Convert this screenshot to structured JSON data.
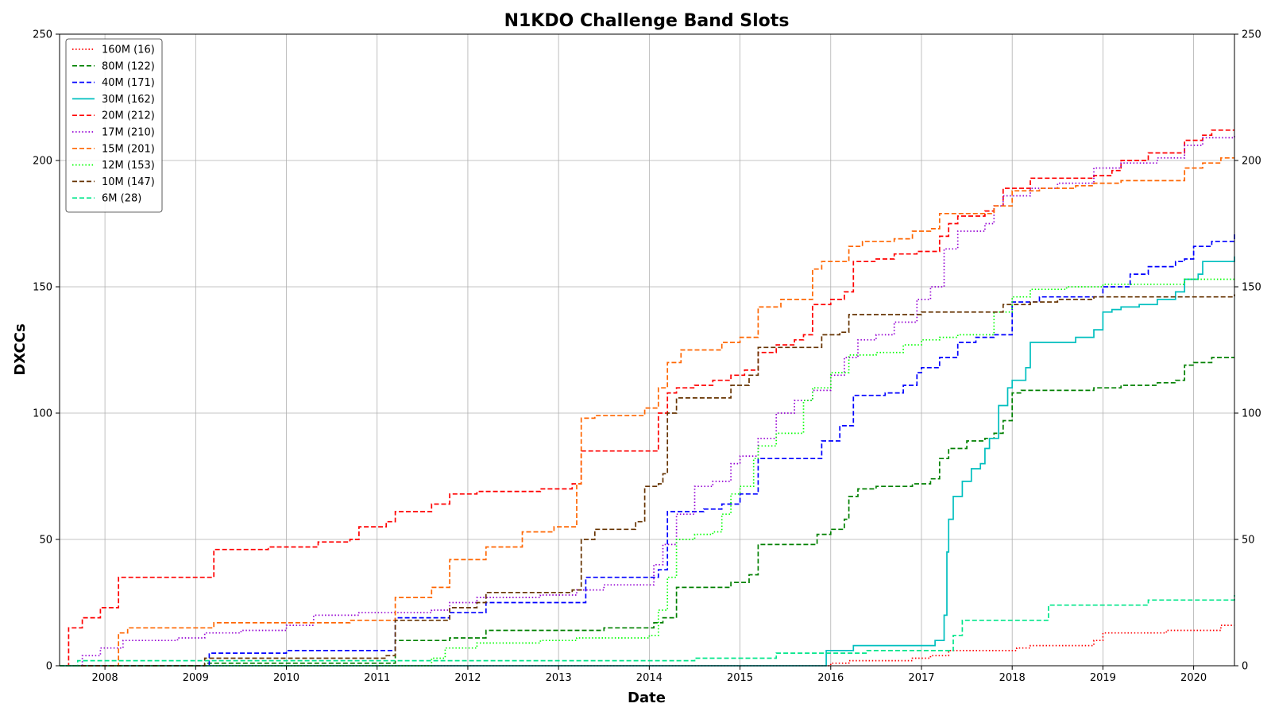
{
  "chart_data": {
    "type": "line",
    "title": "N1KDO Challenge Band Slots",
    "xlabel": "Date",
    "ylabel": "DXCCs",
    "xlim": [
      2007.5,
      2020.45
    ],
    "ylim": [
      0,
      250
    ],
    "x_ticks": [
      "2008",
      "2009",
      "2010",
      "2011",
      "2012",
      "2013",
      "2014",
      "2015",
      "2016",
      "2017",
      "2018",
      "2019",
      "2020"
    ],
    "y_ticks": [
      "0",
      "50",
      "100",
      "150",
      "200",
      "250"
    ],
    "grid": true,
    "legend_position": "top-left",
    "series": [
      {
        "name": "160M (16)",
        "color": "#ff0000",
        "style": "dotted",
        "x": [
          2007.5,
          2015.9,
          2016.0,
          2016.2,
          2016.5,
          2016.9,
          2017.1,
          2017.3,
          2017.8,
          2018.05,
          2018.2,
          2018.5,
          2018.8,
          2018.9,
          2019.0,
          2019.5,
          2019.7,
          2020.0,
          2020.3,
          2020.45
        ],
        "y": [
          0,
          0,
          1,
          2,
          2,
          3,
          4,
          6,
          6,
          7,
          8,
          8,
          8,
          10,
          13,
          13,
          14,
          14,
          16,
          16
        ]
      },
      {
        "name": "80M (122)",
        "color": "#008000",
        "style": "dashed",
        "x": [
          2007.5,
          2009.1,
          2011.2,
          2011.8,
          2012.2,
          2012.5,
          2013.1,
          2013.5,
          2013.9,
          2014.05,
          2014.15,
          2014.3,
          2014.7,
          2014.9,
          2015.1,
          2015.2,
          2015.6,
          2015.85,
          2016.0,
          2016.15,
          2016.2,
          2016.3,
          2016.5,
          2016.9,
          2017.1,
          2017.2,
          2017.3,
          2017.5,
          2017.7,
          2017.8,
          2017.9,
          2018.0,
          2018.1,
          2018.5,
          2018.9,
          2019.2,
          2019.6,
          2019.8,
          2019.9,
          2020.0,
          2020.2,
          2020.45
        ],
        "y": [
          0,
          1,
          10,
          11,
          14,
          14,
          14,
          15,
          15,
          17,
          19,
          31,
          31,
          33,
          36,
          48,
          48,
          52,
          54,
          58,
          67,
          70,
          71,
          72,
          74,
          82,
          86,
          89,
          90,
          92,
          97,
          108,
          109,
          109,
          110,
          111,
          112,
          113,
          119,
          120,
          122,
          122
        ]
      },
      {
        "name": "40M (171)",
        "color": "#0000ff",
        "style": "dashed",
        "x": [
          2007.5,
          2009.15,
          2010.0,
          2011.1,
          2011.2,
          2011.6,
          2011.8,
          2012.2,
          2013.15,
          2013.3,
          2013.8,
          2014.1,
          2014.2,
          2014.6,
          2014.8,
          2015.0,
          2015.2,
          2015.8,
          2015.9,
          2016.1,
          2016.25,
          2016.6,
          2016.8,
          2016.95,
          2017.0,
          2017.2,
          2017.4,
          2017.6,
          2017.8,
          2018.0,
          2018.3,
          2018.8,
          2019.0,
          2019.3,
          2019.5,
          2019.8,
          2019.9,
          2020.0,
          2020.2,
          2020.45
        ],
        "y": [
          0,
          5,
          6,
          6,
          19,
          19,
          21,
          25,
          25,
          35,
          35,
          38,
          61,
          62,
          64,
          68,
          82,
          82,
          89,
          95,
          107,
          108,
          111,
          116,
          118,
          122,
          128,
          130,
          131,
          144,
          146,
          146,
          150,
          155,
          158,
          160,
          161,
          166,
          168,
          171
        ]
      },
      {
        "name": "30M (162)",
        "color": "#00bfbf",
        "style": "solid",
        "x": [
          2007.5,
          2015.9,
          2015.95,
          2016.25,
          2016.5,
          2016.9,
          2017.15,
          2017.25,
          2017.28,
          2017.3,
          2017.35,
          2017.45,
          2017.55,
          2017.65,
          2017.7,
          2017.75,
          2017.85,
          2017.95,
          2018.0,
          2018.15,
          2018.2,
          2018.5,
          2018.7,
          2018.9,
          2019.0,
          2019.1,
          2019.2,
          2019.4,
          2019.6,
          2019.8,
          2019.9,
          2020.05,
          2020.1,
          2020.45
        ],
        "y": [
          0,
          0,
          6,
          8,
          8,
          8,
          10,
          20,
          45,
          58,
          67,
          73,
          78,
          80,
          86,
          90,
          103,
          110,
          113,
          118,
          128,
          128,
          130,
          133,
          140,
          141,
          142,
          143,
          145,
          148,
          153,
          155,
          160,
          162
        ]
      },
      {
        "name": "20M (212)",
        "color": "#ff0000",
        "style": "dashed",
        "x": [
          2007.5,
          2007.6,
          2007.75,
          2007.95,
          2008.15,
          2009.15,
          2009.2,
          2009.8,
          2010.35,
          2010.7,
          2010.8,
          2011.1,
          2011.2,
          2011.6,
          2011.8,
          2012.1,
          2012.8,
          2013.15,
          2013.25,
          2013.3,
          2013.6,
          2013.8,
          2014.1,
          2014.2,
          2014.3,
          2014.5,
          2014.7,
          2014.9,
          2015.05,
          2015.2,
          2015.4,
          2015.6,
          2015.7,
          2015.8,
          2016.0,
          2016.15,
          2016.25,
          2016.5,
          2016.7,
          2016.95,
          2017.2,
          2017.3,
          2017.4,
          2017.7,
          2017.8,
          2017.9,
          2018.2,
          2018.4,
          2018.7,
          2018.9,
          2019.1,
          2019.2,
          2019.5,
          2019.8,
          2019.9,
          2020.1,
          2020.2,
          2020.45
        ],
        "y": [
          0,
          15,
          19,
          23,
          35,
          35,
          46,
          47,
          49,
          50,
          55,
          57,
          61,
          64,
          68,
          69,
          70,
          72,
          85,
          85,
          85,
          85,
          100,
          108,
          110,
          111,
          113,
          115,
          117,
          124,
          127,
          129,
          131,
          143,
          145,
          148,
          160,
          161,
          163,
          164,
          170,
          175,
          178,
          180,
          182,
          189,
          193,
          193,
          193,
          194,
          196,
          200,
          203,
          203,
          208,
          210,
          212,
          212
        ]
      },
      {
        "name": "17M (210)",
        "color": "#9400d3",
        "style": "dotted",
        "x": [
          2007.5,
          2007.75,
          2007.95,
          2008.2,
          2008.8,
          2009.1,
          2009.5,
          2010.0,
          2010.3,
          2010.8,
          2011.2,
          2011.6,
          2011.8,
          2012.1,
          2012.8,
          2013.2,
          2013.5,
          2013.9,
          2014.05,
          2014.15,
          2014.3,
          2014.5,
          2014.7,
          2014.9,
          2015.0,
          2015.2,
          2015.4,
          2015.6,
          2015.8,
          2016.0,
          2016.15,
          2016.3,
          2016.5,
          2016.7,
          2016.95,
          2017.1,
          2017.25,
          2017.4,
          2017.7,
          2017.8,
          2017.9,
          2018.2,
          2018.5,
          2018.9,
          2019.2,
          2019.6,
          2019.8,
          2019.9,
          2020.1,
          2020.45
        ],
        "y": [
          0,
          4,
          7,
          10,
          11,
          13,
          14,
          16,
          20,
          21,
          21,
          22,
          25,
          27,
          28,
          30,
          32,
          32,
          40,
          48,
          60,
          71,
          73,
          80,
          83,
          90,
          100,
          105,
          109,
          115,
          122,
          129,
          131,
          136,
          145,
          150,
          165,
          172,
          175,
          182,
          186,
          189,
          191,
          197,
          199,
          201,
          201,
          206,
          209,
          210
        ]
      },
      {
        "name": "15M (201)",
        "color": "#ff6600",
        "style": "dashed",
        "x": [
          2007.5,
          2008.15,
          2008.25,
          2009.2,
          2010.7,
          2011.2,
          2011.6,
          2011.8,
          2012.2,
          2012.6,
          2012.95,
          2013.2,
          2013.25,
          2013.4,
          2013.8,
          2013.95,
          2014.1,
          2014.2,
          2014.35,
          2014.8,
          2015.0,
          2015.2,
          2015.45,
          2015.8,
          2015.9,
          2016.2,
          2016.35,
          2016.7,
          2016.9,
          2017.1,
          2017.2,
          2017.65,
          2017.8,
          2018.0,
          2018.3,
          2018.7,
          2018.9,
          2019.2,
          2019.8,
          2019.9,
          2020.1,
          2020.3,
          2020.45
        ],
        "y": [
          0,
          13,
          15,
          17,
          18,
          27,
          31,
          42,
          47,
          53,
          55,
          72,
          98,
          99,
          99,
          102,
          110,
          120,
          125,
          128,
          130,
          142,
          145,
          157,
          160,
          166,
          168,
          169,
          172,
          173,
          179,
          179,
          182,
          188,
          189,
          190,
          191,
          192,
          192,
          197,
          199,
          201,
          201
        ]
      },
      {
        "name": "12M (153)",
        "color": "#00ff00",
        "style": "dotted",
        "x": [
          2007.5,
          2011.6,
          2011.75,
          2012.1,
          2012.8,
          2013.2,
          2013.5,
          2013.9,
          2014.0,
          2014.1,
          2014.2,
          2014.3,
          2014.5,
          2014.7,
          2014.8,
          2014.9,
          2015.0,
          2015.15,
          2015.2,
          2015.4,
          2015.7,
          2015.8,
          2016.0,
          2016.2,
          2016.5,
          2016.8,
          2017.0,
          2017.2,
          2017.4,
          2017.8,
          2018.0,
          2018.2,
          2018.6,
          2019.0,
          2019.5,
          2019.8,
          2019.9,
          2020.45
        ],
        "y": [
          0,
          3,
          7,
          9,
          10,
          11,
          11,
          11,
          12,
          22,
          35,
          50,
          52,
          53,
          60,
          68,
          71,
          82,
          87,
          92,
          105,
          110,
          116,
          123,
          124,
          127,
          129,
          130,
          131,
          140,
          146,
          149,
          150,
          151,
          151,
          151,
          153,
          153
        ]
      },
      {
        "name": "10M (147)",
        "color": "#663300",
        "style": "dashed",
        "x": [
          2007.5,
          2009.1,
          2010.0,
          2011.1,
          2011.2,
          2011.7,
          2011.8,
          2012.1,
          2012.2,
          2012.8,
          2013.15,
          2013.25,
          2013.4,
          2013.7,
          2013.85,
          2013.95,
          2014.1,
          2014.15,
          2014.2,
          2014.3,
          2014.8,
          2014.9,
          2015.1,
          2015.2,
          2015.5,
          2015.8,
          2015.9,
          2016.1,
          2016.2,
          2016.4,
          2016.7,
          2017.0,
          2017.5,
          2017.8,
          2017.9,
          2018.2,
          2018.5,
          2018.9,
          2019.3,
          2019.7,
          2020.3,
          2020.45
        ],
        "y": [
          0,
          3,
          3,
          4,
          18,
          18,
          23,
          25,
          29,
          29,
          30,
          50,
          54,
          54,
          57,
          71,
          72,
          76,
          100,
          106,
          106,
          111,
          115,
          126,
          126,
          126,
          131,
          132,
          139,
          139,
          139,
          140,
          140,
          140,
          143,
          144,
          145,
          146,
          146,
          146,
          146,
          147
        ]
      },
      {
        "name": "6M (28)",
        "color": "#00e68a",
        "style": "dashed",
        "x": [
          2007.5,
          2007.7,
          2011.2,
          2011.8,
          2012.5,
          2013.0,
          2014.3,
          2014.5,
          2015.4,
          2015.95,
          2016.1,
          2016.4,
          2016.7,
          2017.0,
          2017.2,
          2017.35,
          2017.45,
          2017.8,
          2018.3,
          2018.4,
          2018.9,
          2019.2,
          2019.5,
          2019.9,
          2020.1,
          2020.35,
          2020.45
        ],
        "y": [
          0,
          2,
          2,
          2,
          2,
          2,
          2,
          3,
          5,
          5,
          5,
          6,
          6,
          6,
          6,
          12,
          18,
          18,
          18,
          24,
          24,
          24,
          26,
          26,
          26,
          26,
          28
        ]
      }
    ]
  }
}
